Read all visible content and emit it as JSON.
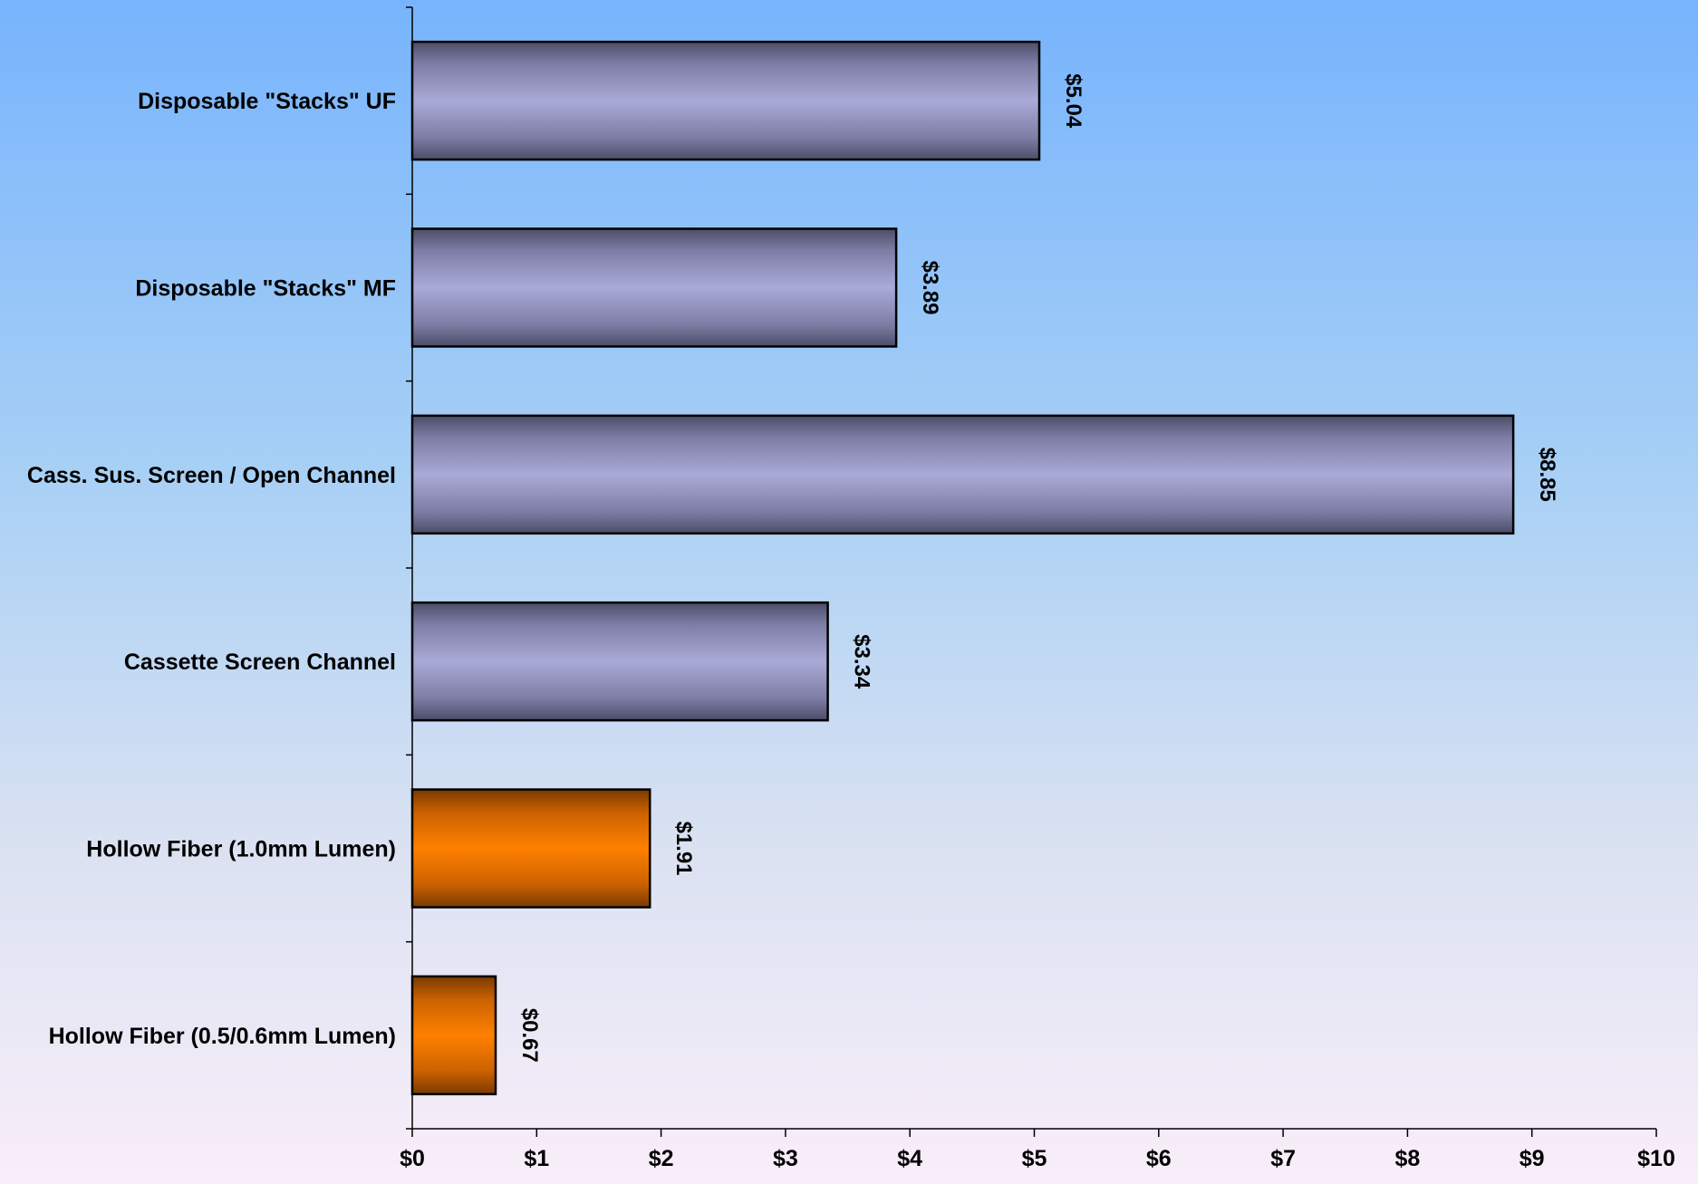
{
  "chart_data": {
    "type": "bar",
    "orientation": "horizontal",
    "categories": [
      "Disposable \"Stacks\" UF",
      "Disposable \"Stacks\" MF",
      "Cass. Sus. Screen / Open Channel",
      "Cassette Screen Channel",
      "Hollow Fiber (1.0mm Lumen)",
      "Hollow Fiber  (0.5/0.6mm Lumen)"
    ],
    "values": [
      5.04,
      3.89,
      8.85,
      3.34,
      1.91,
      0.67
    ],
    "data_labels": [
      "$5.04",
      "$3.89",
      "$8.85",
      "$3.34",
      "$1.91",
      "$0.67"
    ],
    "bar_colors": [
      "#a9a9d6",
      "#a9a9d6",
      "#a9a9d6",
      "#a9a9d6",
      "#ff8000",
      "#ff8000"
    ],
    "xlim": [
      0,
      10
    ],
    "x_ticks": [
      0,
      1,
      2,
      3,
      4,
      5,
      6,
      7,
      8,
      9,
      10
    ],
    "x_tick_labels": [
      "$0",
      "$1",
      "$2",
      "$3",
      "$4",
      "$5",
      "$6",
      "$7",
      "$8",
      "$9",
      "$10"
    ],
    "title": "",
    "xlabel": "",
    "ylabel": "",
    "grid": false,
    "legend": "none",
    "data_label_orientation": "rotated-90-clockwise"
  }
}
